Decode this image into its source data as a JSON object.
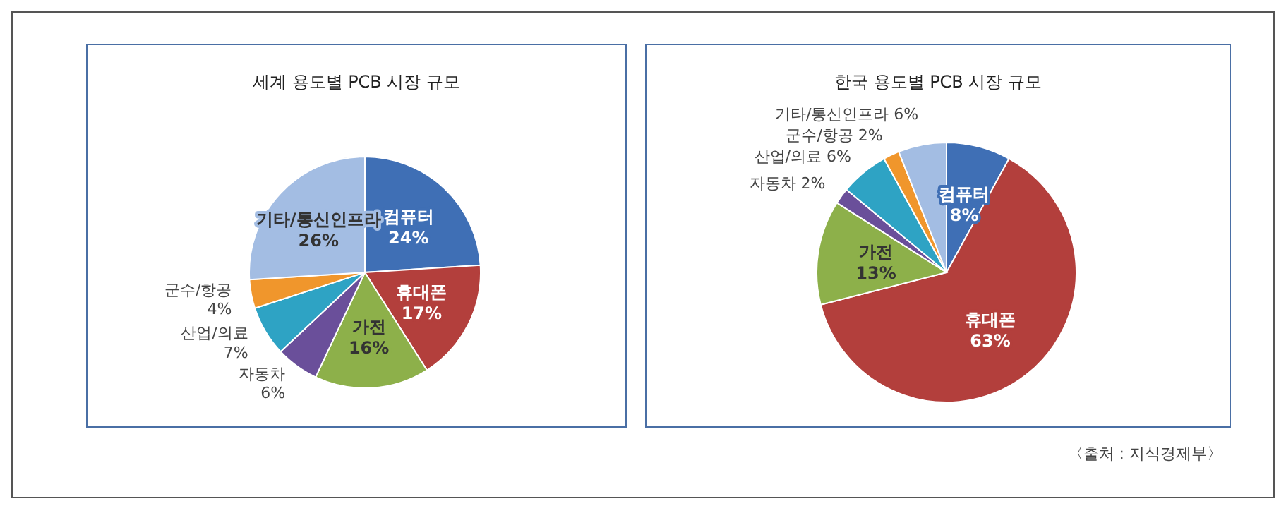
{
  "chart_data": [
    {
      "type": "pie",
      "title": "세계 용도별 PCB 시장 규모",
      "categories": [
        "컴퓨터",
        "휴대폰",
        "가전",
        "자동차",
        "산업/의료",
        "군수/항공",
        "기타/통신인프라"
      ],
      "values": [
        24,
        17,
        16,
        6,
        7,
        4,
        26
      ],
      "value_labels": [
        "24%",
        "17%",
        "16%",
        "6%",
        "7%",
        "4%",
        "26%"
      ],
      "colors": [
        "#3f6fb5",
        "#b33f3c",
        "#8db04a",
        "#6a4f9a",
        "#2ea3c4",
        "#f0962c",
        "#a3bde3"
      ],
      "legend": false
    },
    {
      "type": "pie",
      "title": "한국 용도별 PCB 시장 규모",
      "categories": [
        "컴퓨터",
        "휴대폰",
        "가전",
        "자동차",
        "산업/의료",
        "군수/항공",
        "기타/통신인프라"
      ],
      "values": [
        8,
        63,
        13,
        2,
        6,
        2,
        6
      ],
      "value_labels": [
        "8%",
        "63%",
        "13%",
        "2%",
        "6%",
        "2%",
        "6%"
      ],
      "colors": [
        "#3f6fb5",
        "#b33f3c",
        "#8db04a",
        "#6a4f9a",
        "#2ea3c4",
        "#f0962c",
        "#a3bde3"
      ],
      "legend": false,
      "annotations": [
        "〈출처 : 지식경제부〉"
      ]
    }
  ]
}
